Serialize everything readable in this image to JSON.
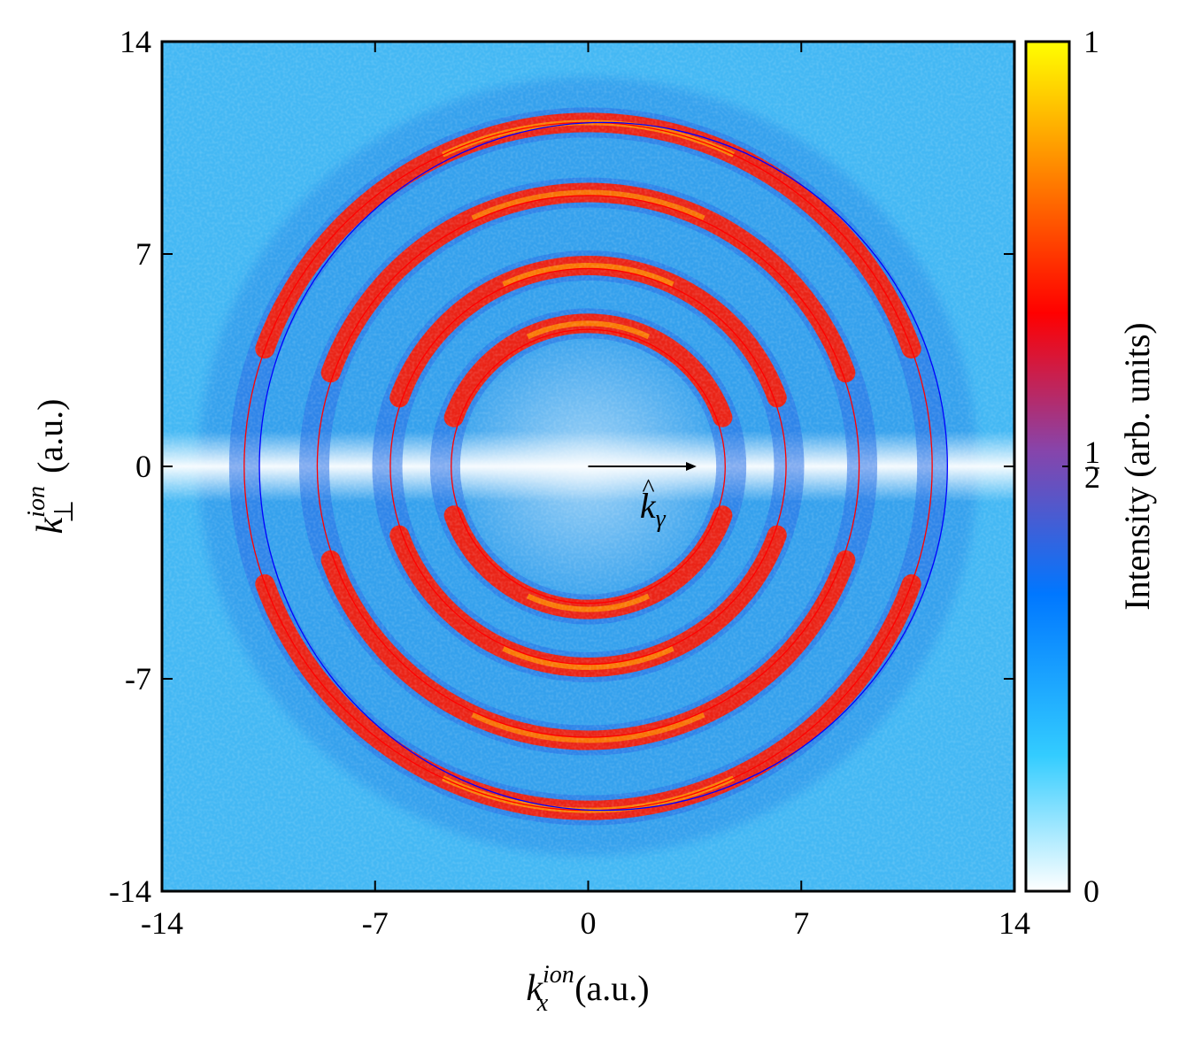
{
  "chart_data": {
    "type": "heatmap",
    "xlim": [
      -14,
      14
    ],
    "ylim": [
      -14,
      14
    ],
    "x_ticks": [
      "-14",
      "-7",
      "0",
      "7",
      "14"
    ],
    "y_ticks": [
      "14",
      "7",
      "0",
      "-7",
      "-14"
    ],
    "x_tick_values": [
      -14,
      -7,
      0,
      7,
      14
    ],
    "y_tick_values": [
      14,
      7,
      0,
      -7,
      -14
    ],
    "xlabel": {
      "symbol": "k",
      "superscript": "ion",
      "subscript": "x",
      "unit": "(a.u.)"
    },
    "ylabel": {
      "symbol": "k",
      "superscript": "ion",
      "subscript": "⊥",
      "unit": "(a.u.)"
    },
    "colorbar": {
      "label": "Intensity (arb. units)",
      "ticks": [
        "0",
        "1/2",
        "1"
      ],
      "tick_values": [
        0,
        0.5,
        1
      ],
      "range": [
        0,
        1
      ],
      "colors": [
        "#ffffff",
        "#33ccff",
        "#0066ff",
        "#8844aa",
        "#ff0000",
        "#ff8800",
        "#ffff00"
      ]
    },
    "rings": [
      {
        "radius": 4.7,
        "intensity": 0.85
      },
      {
        "radius": 6.6,
        "intensity": 0.85
      },
      {
        "radius": 9.0,
        "intensity": 0.8
      },
      {
        "radius": 11.3,
        "intensity": 0.9
      }
    ],
    "fitted_circles": [
      {
        "cx": 0.0,
        "cy": 0.0,
        "r": 4.5,
        "color": "#ff0000"
      },
      {
        "cx": 0.0,
        "cy": 0.0,
        "r": 6.5,
        "color": "#ff0000"
      },
      {
        "cx": 0.0,
        "cy": 0.0,
        "r": 8.9,
        "color": "#ff0000"
      },
      {
        "cx": 0.0,
        "cy": 0.0,
        "r": 11.3,
        "color": "#ff0000"
      },
      {
        "cx": 0.5,
        "cy": 0.0,
        "r": 11.3,
        "color": "#0000ff"
      }
    ],
    "annotation": {
      "symbol": "k",
      "subscript": "γ",
      "arrow_from": [
        0,
        0
      ],
      "arrow_to": [
        3.5,
        0
      ]
    }
  }
}
